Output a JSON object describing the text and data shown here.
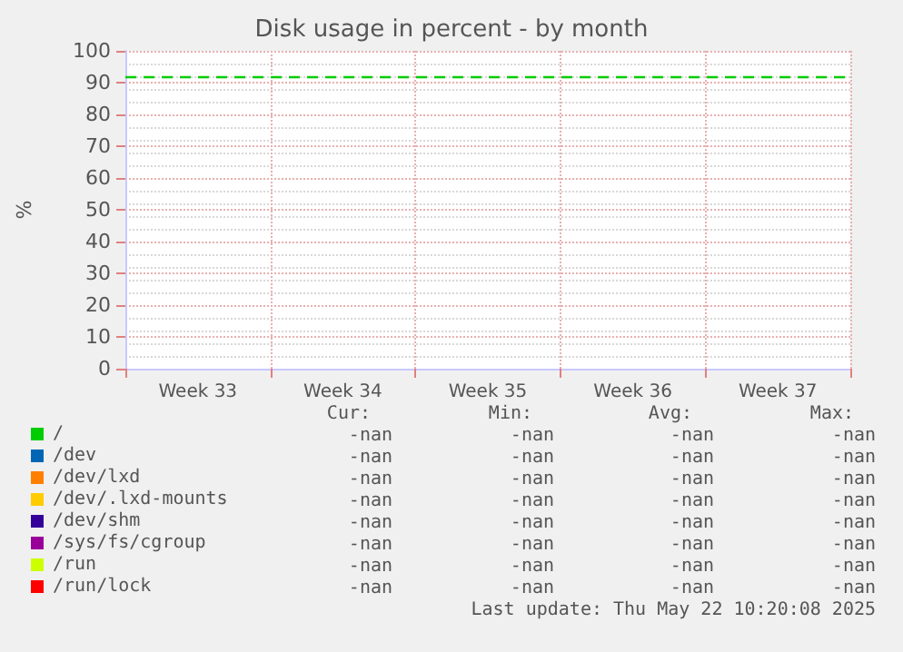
{
  "chart_data": {
    "type": "line",
    "title": "Disk usage in percent - by month",
    "ylabel": "%",
    "categories": [
      "Week 33",
      "Week 34",
      "Week 35",
      "Week 36",
      "Week 37"
    ],
    "ylim": [
      0,
      100
    ],
    "yticks": [
      0,
      10,
      20,
      30,
      40,
      50,
      60,
      70,
      80,
      90,
      100
    ],
    "grid": true,
    "legend": "bottom",
    "series": [
      {
        "name": "/",
        "color": "#00cc00",
        "values": [
          null,
          null,
          null,
          null,
          null
        ]
      },
      {
        "name": "/dev",
        "color": "#0066b3",
        "values": [
          null,
          null,
          null,
          null,
          null
        ]
      },
      {
        "name": "/dev/lxd",
        "color": "#ff8000",
        "values": [
          null,
          null,
          null,
          null,
          null
        ]
      },
      {
        "name": "/dev/.lxd-mounts",
        "color": "#ffcc00",
        "values": [
          null,
          null,
          null,
          null,
          null
        ]
      },
      {
        "name": "/dev/shm",
        "color": "#330099",
        "values": [
          null,
          null,
          null,
          null,
          null
        ]
      },
      {
        "name": "/sys/fs/cgroup",
        "color": "#990099",
        "values": [
          null,
          null,
          null,
          null,
          null
        ]
      },
      {
        "name": "/run",
        "color": "#ccff00",
        "values": [
          null,
          null,
          null,
          null,
          null
        ]
      },
      {
        "name": "/run/lock",
        "color": "#ff0000",
        "values": [
          null,
          null,
          null,
          null,
          null
        ]
      }
    ],
    "ref_lines": [
      {
        "axis": "y",
        "value": 92,
        "label": null,
        "color": "#00cc00",
        "line_style": "dashed"
      }
    ],
    "annotations": [
      "Cur:",
      "Min:",
      "Avg:",
      "Max:",
      "-nan",
      "-nan",
      "-nan",
      "-nan",
      "-nan",
      "-nan",
      "-nan",
      "-nan",
      "-nan",
      "-nan",
      "-nan",
      "-nan",
      "-nan",
      "-nan",
      "-nan",
      "-nan",
      "-nan",
      "-nan",
      "-nan",
      "-nan",
      "-nan",
      "-nan",
      "-nan",
      "-nan",
      "-nan",
      "-nan",
      "-nan",
      "-nan",
      "-nan",
      "-nan",
      "-nan",
      "-nan",
      "Last update: Thu May 22 10:20:08 2025"
    ]
  }
}
